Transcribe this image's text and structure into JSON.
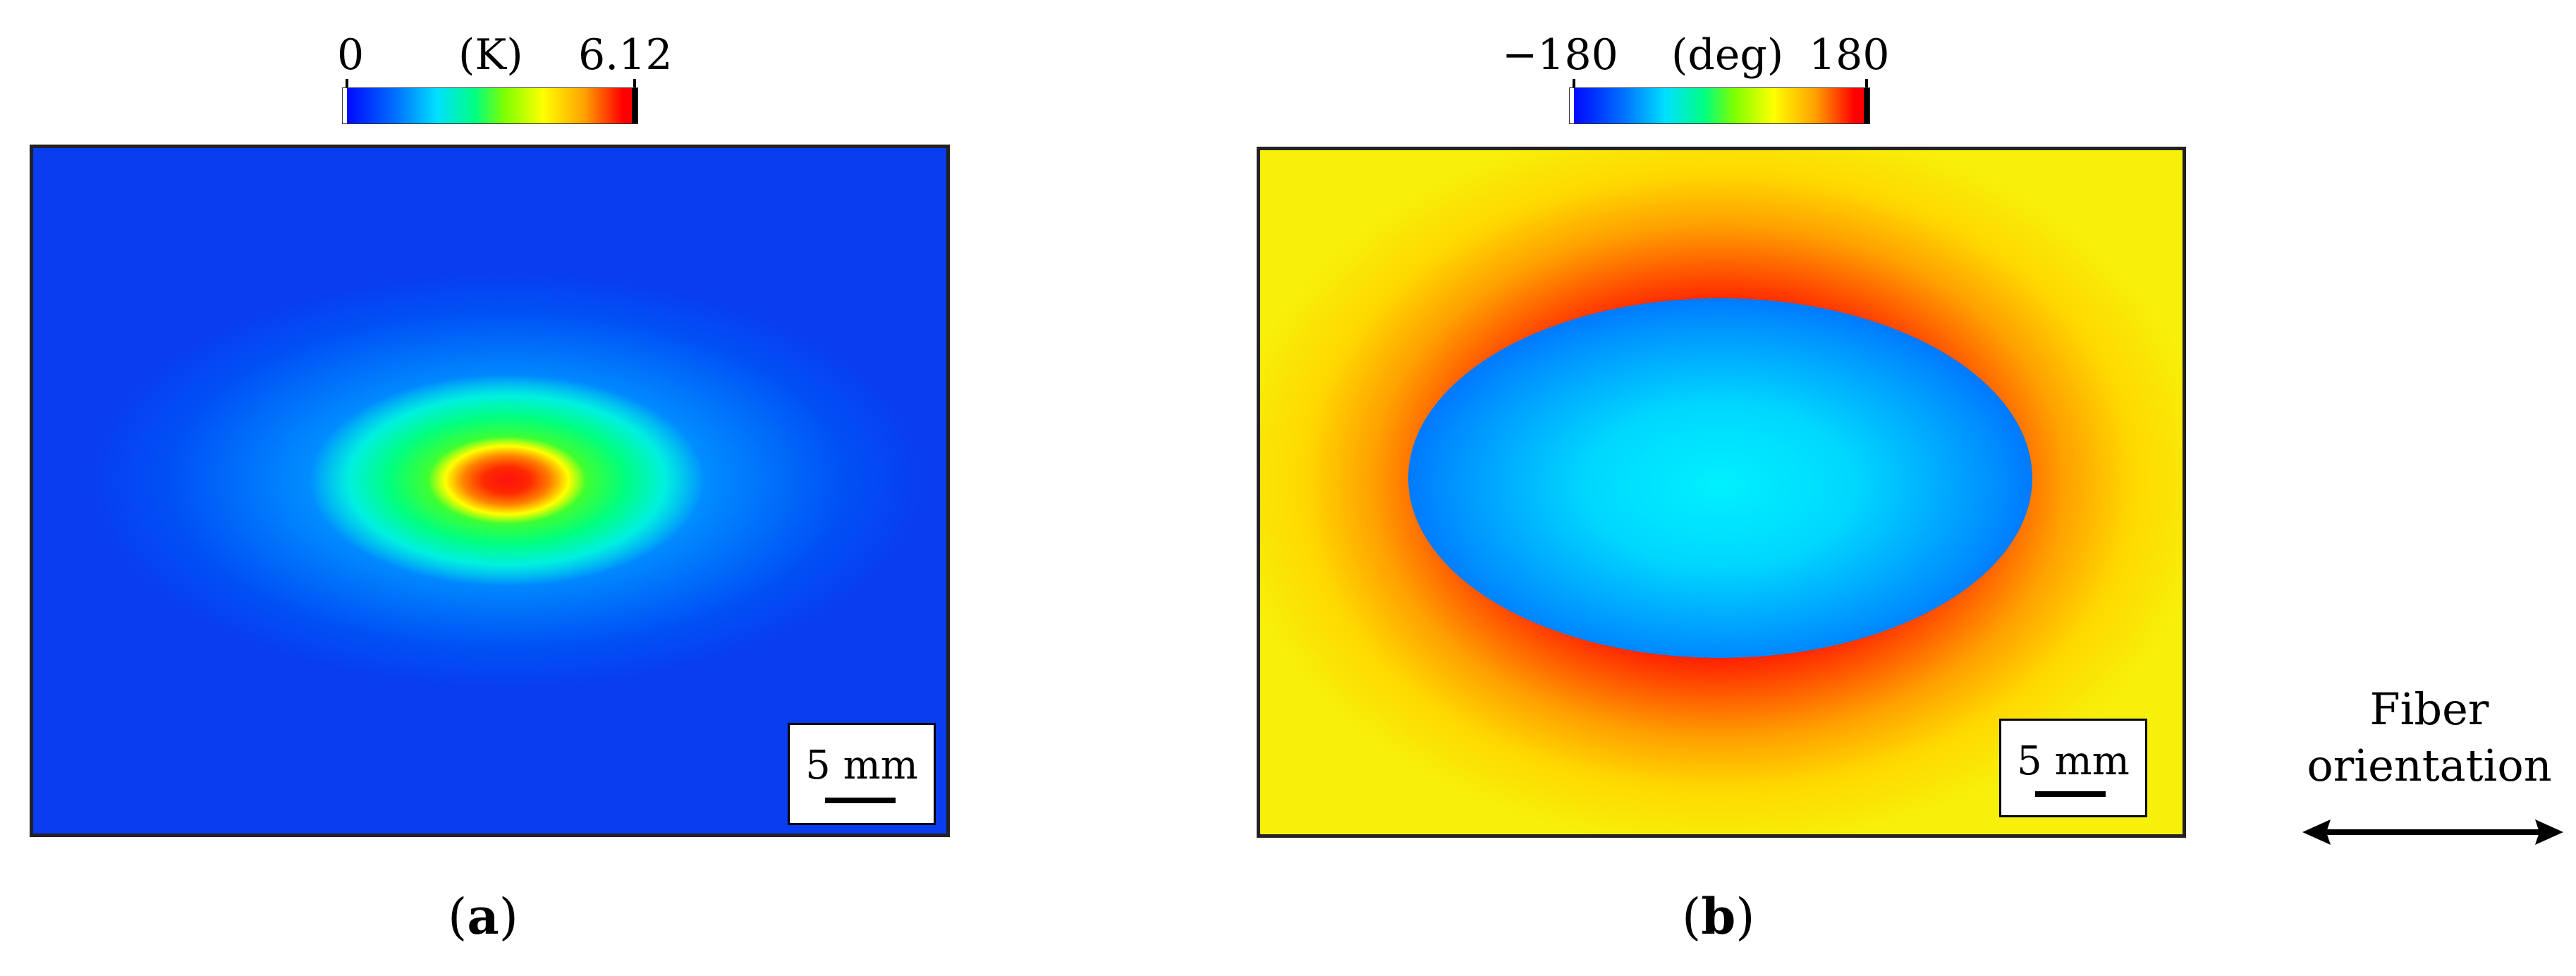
{
  "panel_a": {
    "colorbar": {
      "min_label": "0",
      "unit_label": "(K)",
      "max_label": "6.12"
    },
    "scale_label": "5 mm",
    "label_open": "(",
    "label_letter": "a",
    "label_close": ")"
  },
  "panel_b": {
    "colorbar": {
      "min_label": "−180",
      "unit_label": "(deg)",
      "max_label": "180"
    },
    "scale_label": "5 mm",
    "label_open": "(",
    "label_letter": "b",
    "label_close": ")"
  },
  "annotation": {
    "line1": "Fiber",
    "line2": "orientation",
    "arrow_icon": "double-headed-arrow-icon"
  },
  "colors": {
    "map_a_background": "#0a3cf0",
    "map_b_background": "#f7f00a",
    "colorbar_gradient": [
      "#0000ff",
      "#00ccff",
      "#00ff66",
      "#ffff00",
      "#ff0000"
    ]
  }
}
